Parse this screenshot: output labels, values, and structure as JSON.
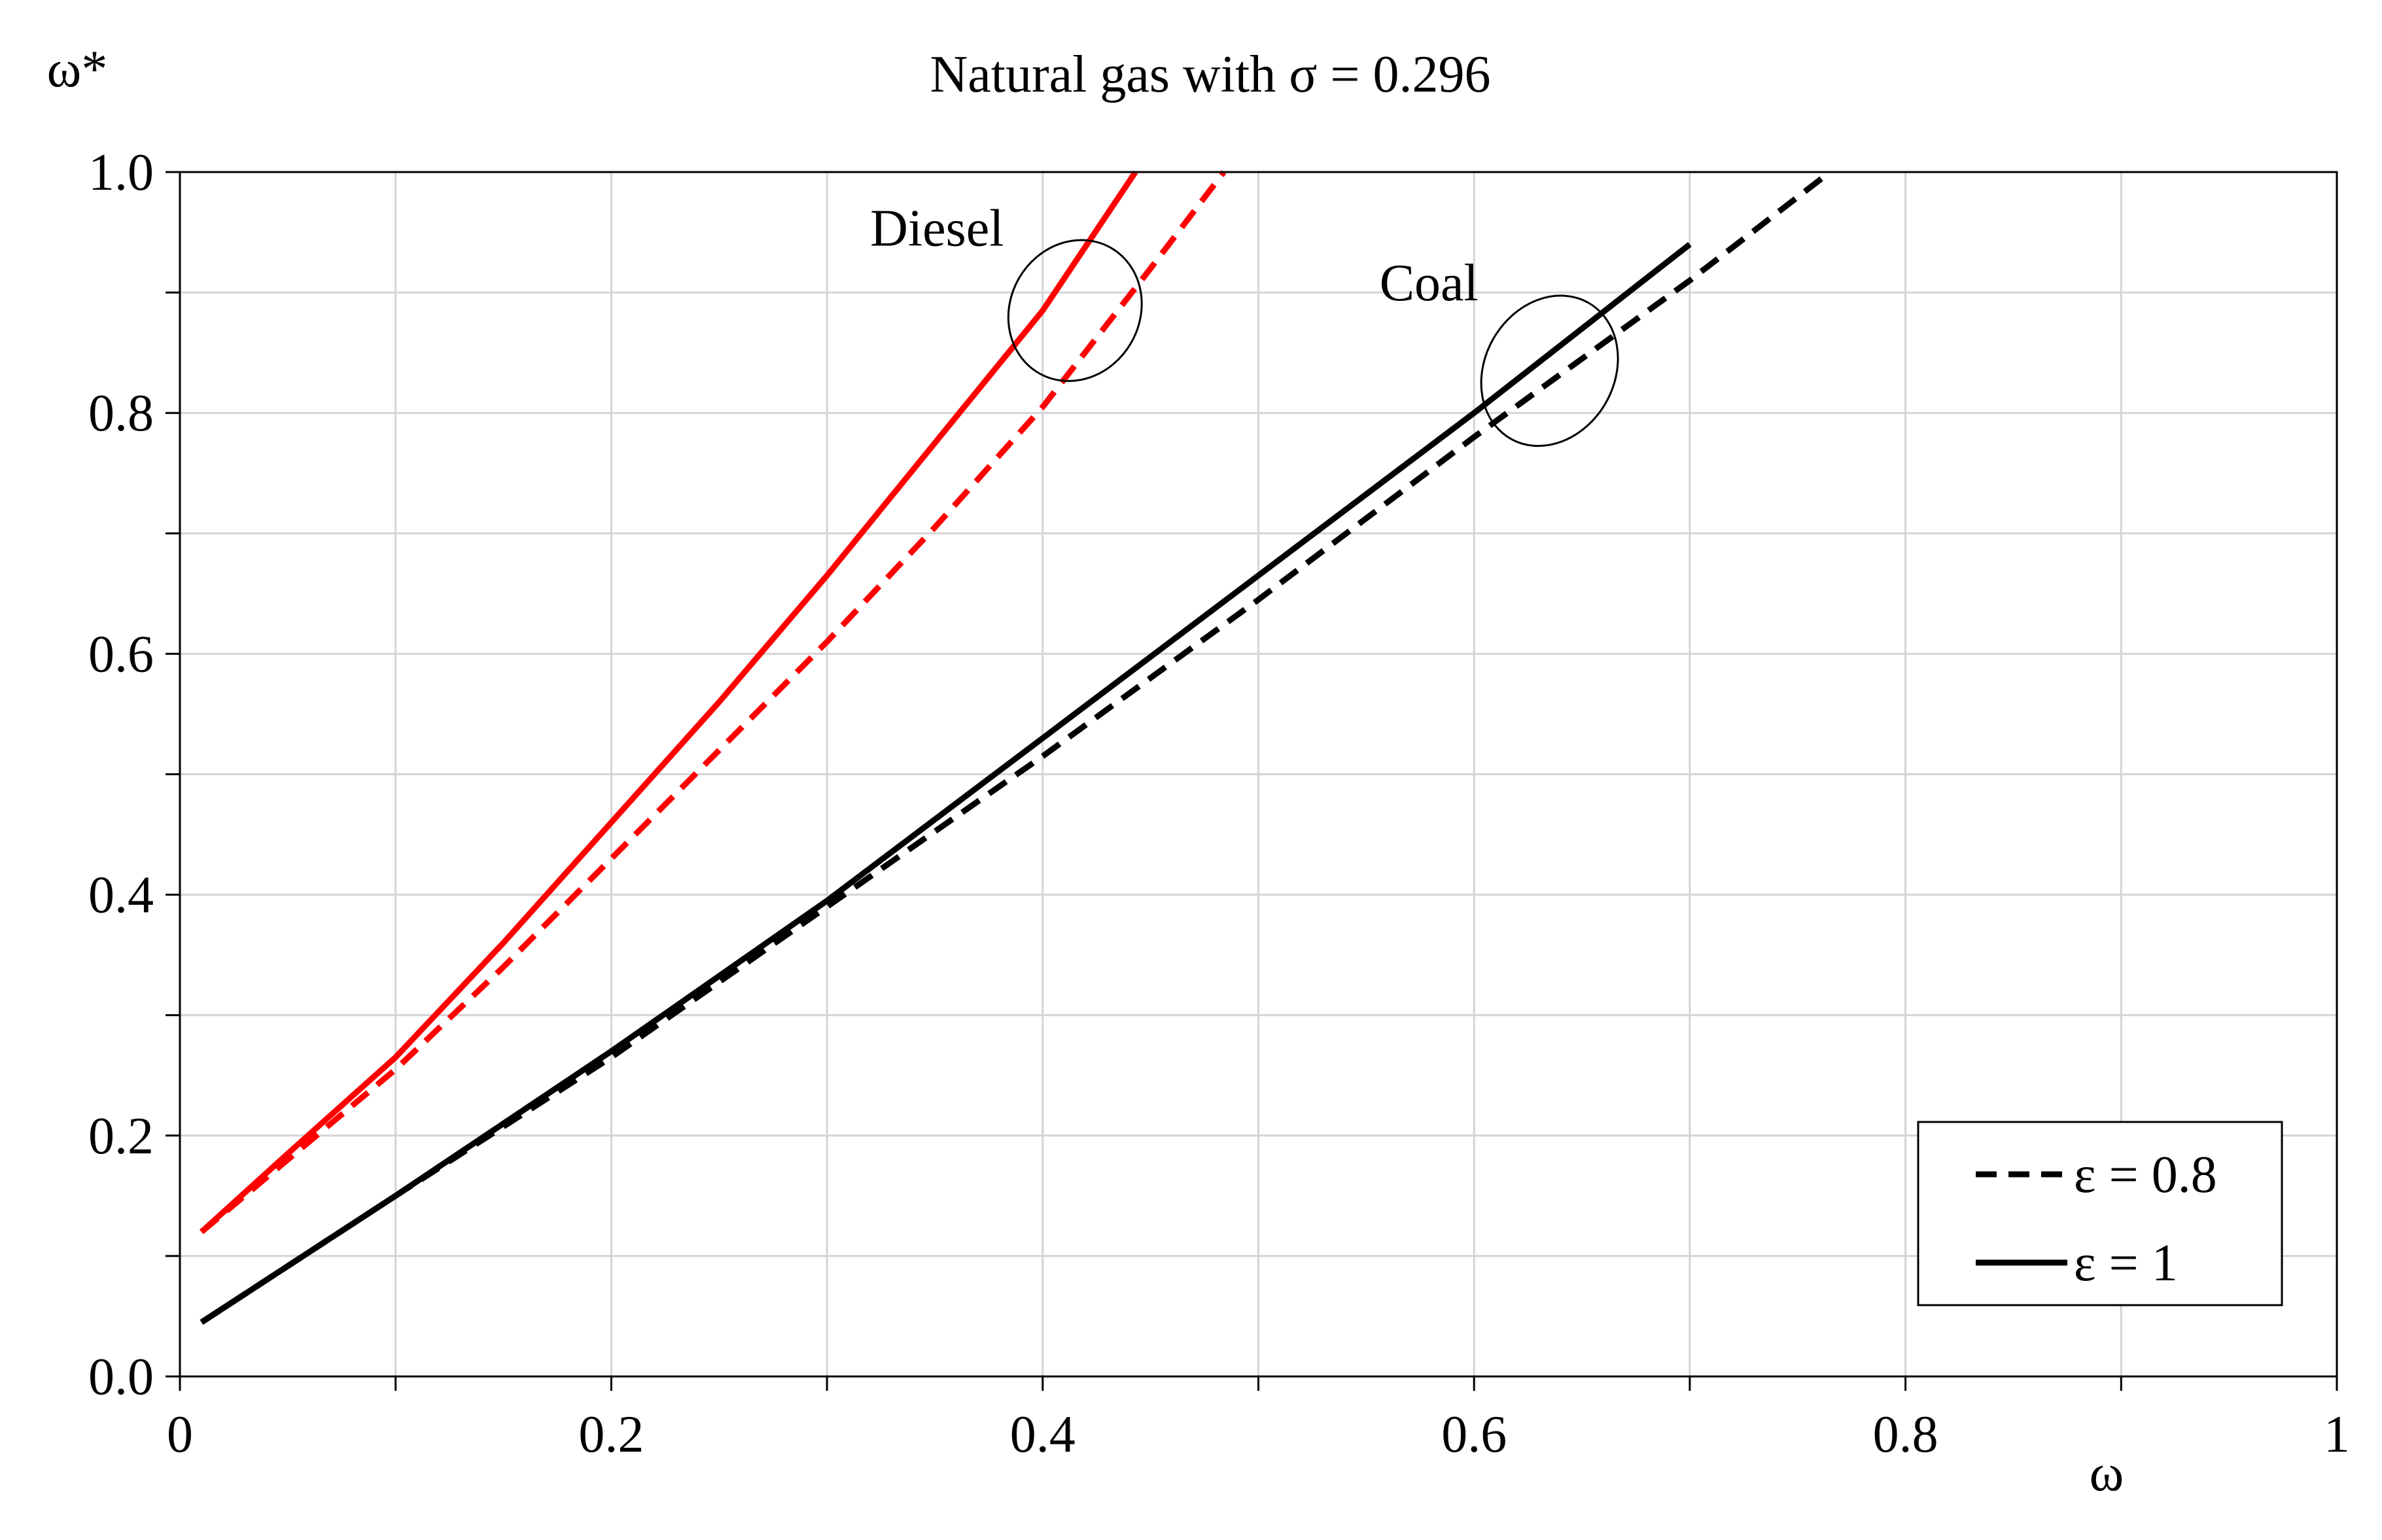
{
  "chart_data": {
    "type": "line",
    "title": "Natural gas with σ = 0.296",
    "xlabel": "ω",
    "ylabel": "ω*",
    "xlim": [
      0,
      1
    ],
    "ylim": [
      0,
      1
    ],
    "grid": true,
    "x_minor_step": 0.1,
    "y_minor_step": 0.1,
    "x_ticks": [
      0,
      0.2,
      0.4,
      0.6,
      0.8,
      1
    ],
    "x_tick_labels": [
      "0",
      "0.2",
      "0.4",
      "0.6",
      "0.8",
      "1"
    ],
    "y_ticks": [
      0,
      0.2,
      0.4,
      0.6,
      0.8,
      1.0
    ],
    "y_tick_labels": [
      "0.0",
      "0.2",
      "0.4",
      "0.6",
      "0.8",
      "1.0"
    ],
    "series": [
      {
        "name": "Diesel, ε = 1",
        "group": "Diesel",
        "style": "solid",
        "color": "#ff0000",
        "x": [
          0.01,
          0.05,
          0.1,
          0.15,
          0.2,
          0.25,
          0.3,
          0.35,
          0.4,
          0.443
        ],
        "y": [
          0.12,
          0.185,
          0.265,
          0.36,
          0.46,
          0.56,
          0.665,
          0.775,
          0.885,
          1.0
        ]
      },
      {
        "name": "Diesel, ε = 0.8",
        "group": "Diesel",
        "style": "dashed",
        "color": "#ff0000",
        "x": [
          0.01,
          0.05,
          0.1,
          0.15,
          0.2,
          0.25,
          0.3,
          0.35,
          0.4,
          0.45,
          0.484
        ],
        "y": [
          0.12,
          0.18,
          0.255,
          0.34,
          0.43,
          0.52,
          0.61,
          0.705,
          0.805,
          0.92,
          1.0
        ]
      },
      {
        "name": "Coal, ε = 1",
        "group": "Coal",
        "style": "solid",
        "color": "#000000",
        "x": [
          0.01,
          0.1,
          0.2,
          0.3,
          0.4,
          0.5,
          0.6,
          0.7
        ],
        "y": [
          0.045,
          0.15,
          0.27,
          0.395,
          0.53,
          0.665,
          0.8,
          0.94
        ]
      },
      {
        "name": "Coal, ε = 0.8",
        "group": "Coal",
        "style": "dashed",
        "color": "#000000",
        "x": [
          0.01,
          0.1,
          0.2,
          0.3,
          0.4,
          0.5,
          0.6,
          0.7,
          0.765
        ],
        "y": [
          0.045,
          0.15,
          0.265,
          0.39,
          0.515,
          0.645,
          0.78,
          0.91,
          1.0
        ]
      }
    ],
    "annotations": [
      {
        "text": "Diesel",
        "series_group": "Diesel",
        "ellipse_center": [
          0.415,
          0.885
        ],
        "ellipse_rx": 0.03,
        "ellipse_ry": 0.06
      },
      {
        "text": "Coal",
        "series_group": "Coal",
        "ellipse_center": [
          0.635,
          0.835
        ],
        "ellipse_rx": 0.03,
        "ellipse_ry": 0.065
      }
    ],
    "legend": {
      "position": "bottom-right",
      "entries": [
        {
          "label": "ε = 0.8",
          "style": "dashed"
        },
        {
          "label": "ε = 1",
          "style": "solid"
        }
      ]
    }
  }
}
